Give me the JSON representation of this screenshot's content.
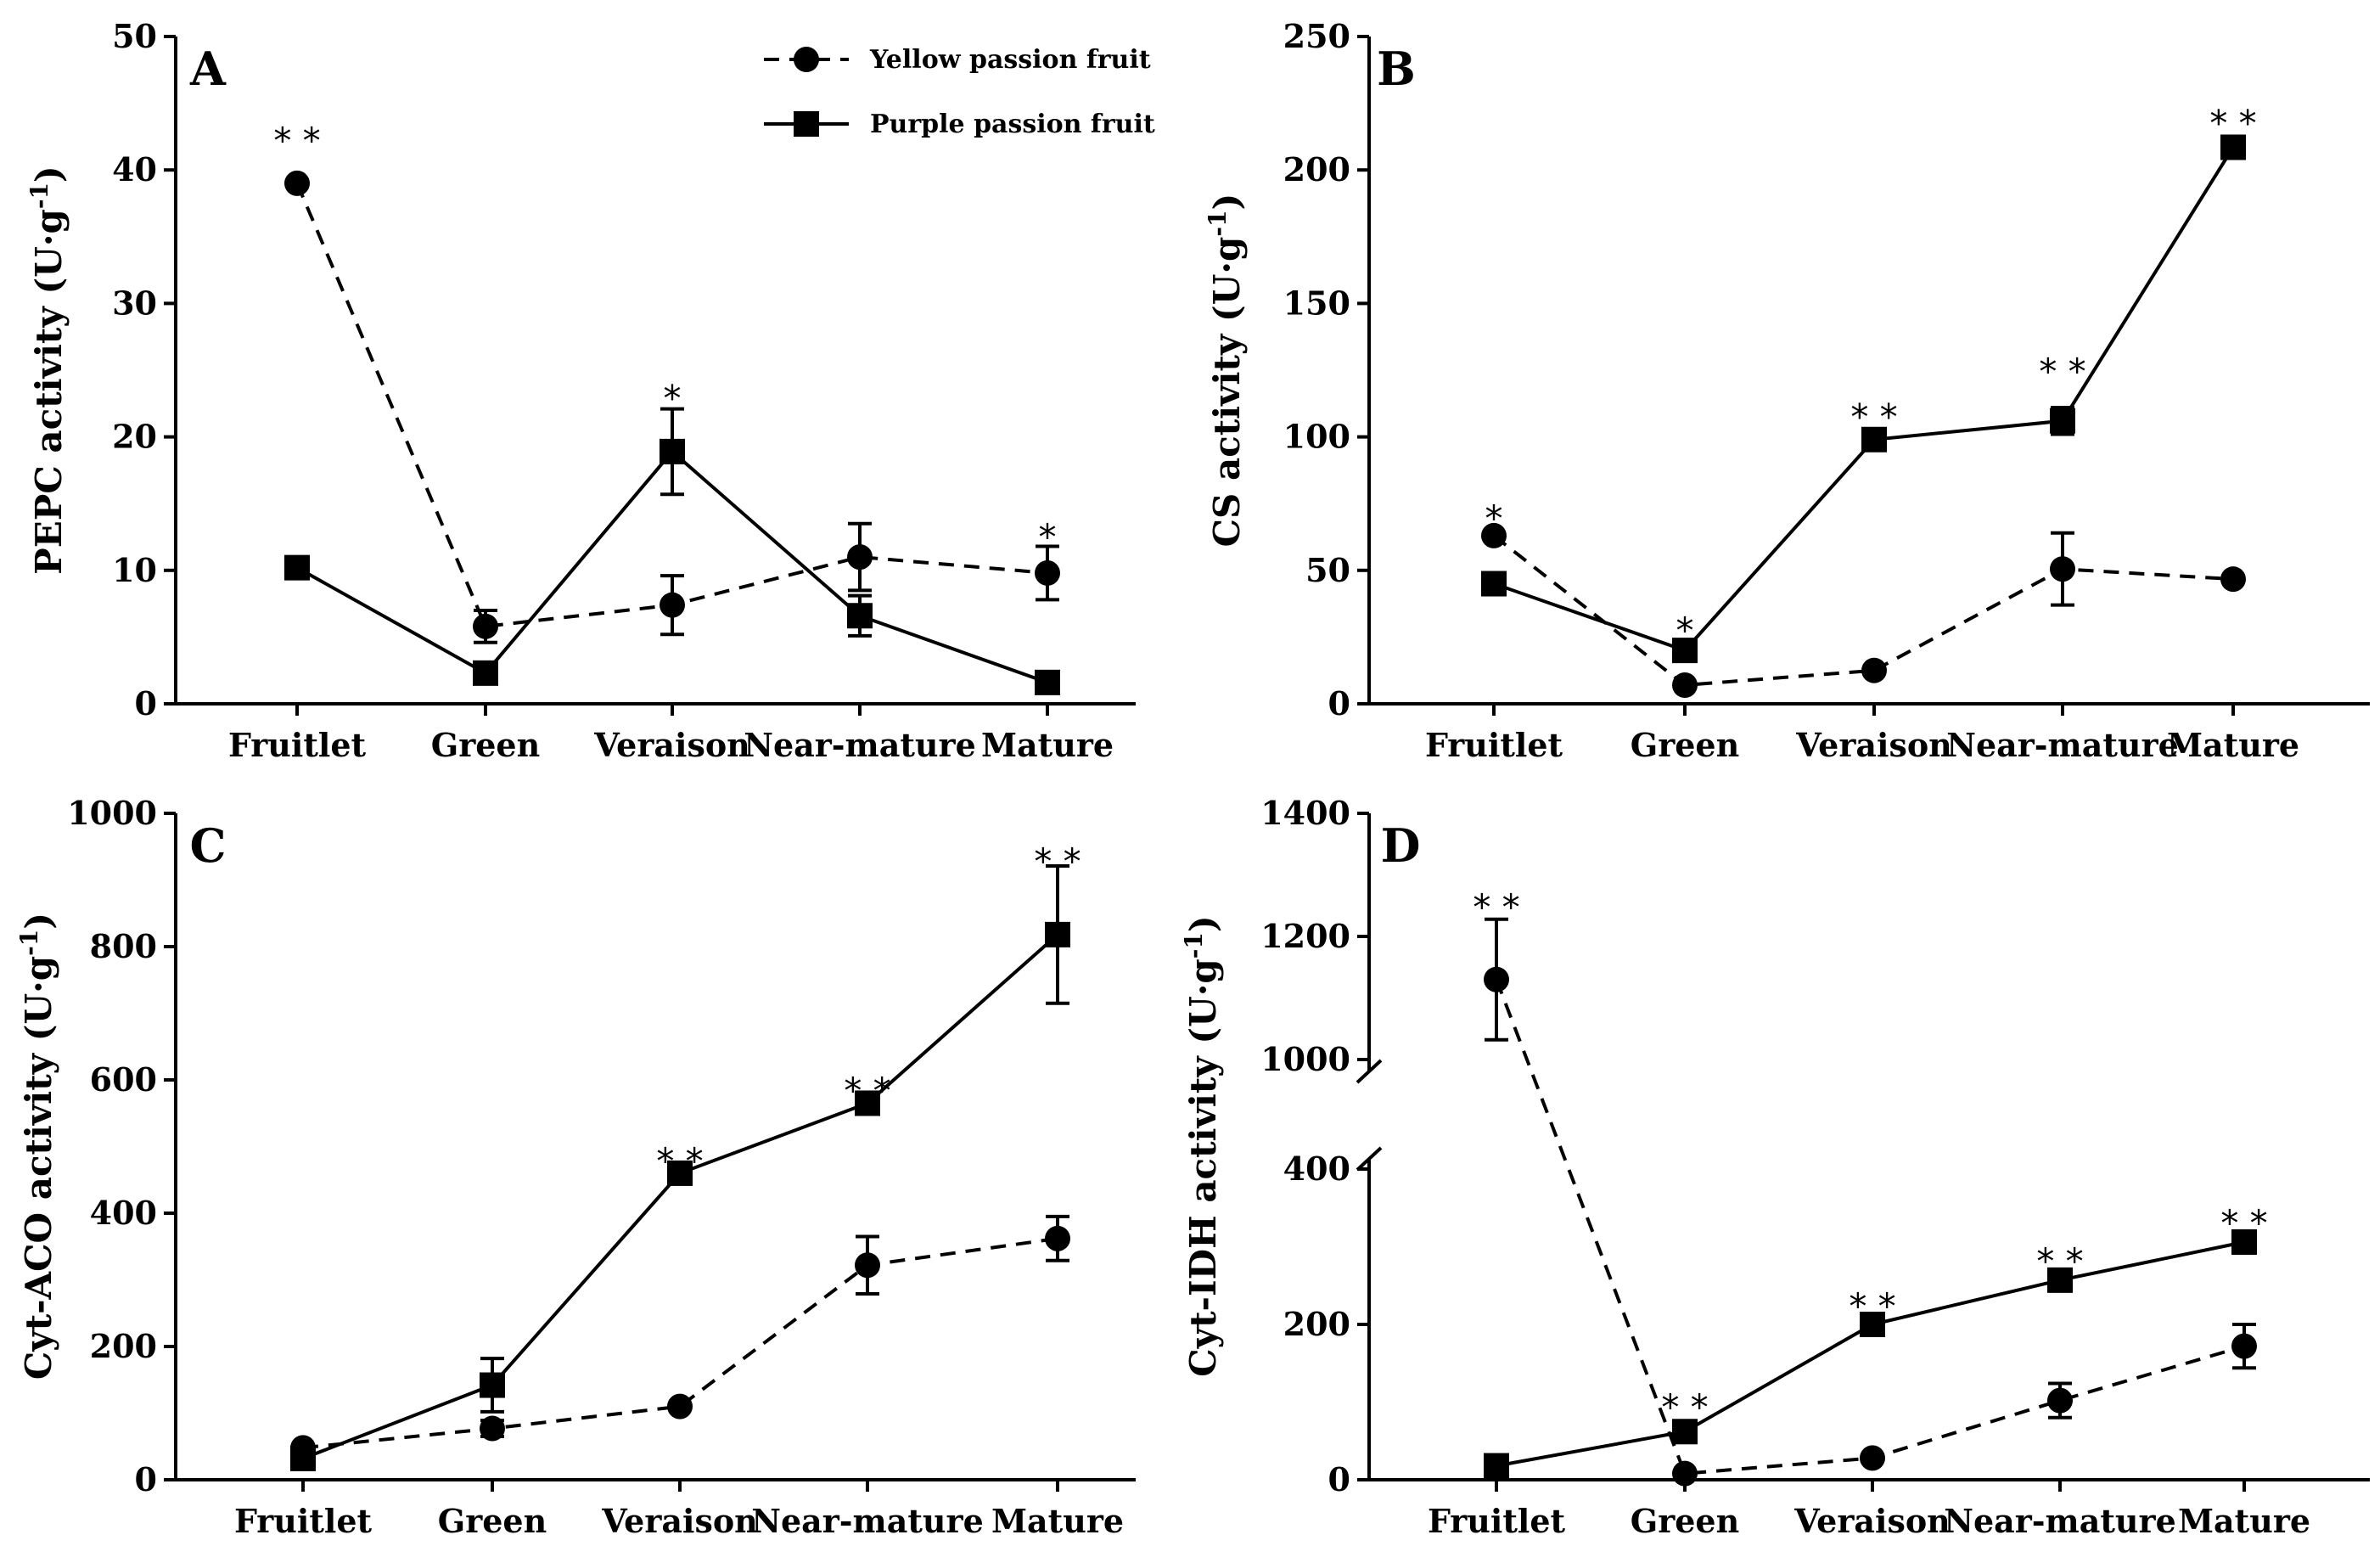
{
  "legend": [
    {
      "name": "Yellow passion fruit",
      "marker": "circle",
      "dash": true
    },
    {
      "name": "Purple passion fruit",
      "marker": "square",
      "dash": false
    }
  ],
  "chart_data": [
    {
      "id": "A",
      "type": "line",
      "panel_label": "A",
      "ylabel_main": "PEPC activity (U·g",
      "ylabel_sup": "-1",
      "ylabel_close": ")",
      "categories": [
        "Fruitlet",
        "Green",
        "Veraison",
        "Near-mature",
        "Mature"
      ],
      "ylim": [
        0,
        50
      ],
      "yticks": [
        0,
        10,
        20,
        30,
        40,
        50
      ],
      "series": [
        {
          "name": "Yellow passion fruit",
          "values": [
            39,
            5.8,
            7.4,
            11.0,
            9.8
          ],
          "errors": [
            0,
            1.2,
            2.2,
            2.5,
            2.0
          ]
        },
        {
          "name": "Purple passion fruit",
          "values": [
            10.2,
            2.3,
            18.9,
            6.6,
            1.6
          ],
          "errors": [
            0,
            0.5,
            3.2,
            1.5,
            0
          ]
        }
      ],
      "significance": [
        {
          "index": 0,
          "label": "* *",
          "y": 42.3
        },
        {
          "index": 2,
          "label": "*",
          "y": 23.0
        },
        {
          "index": 4,
          "label": "*",
          "y": 12.6
        }
      ]
    },
    {
      "id": "B",
      "type": "line",
      "panel_label": "B",
      "ylabel_main": "CS activity (U·g",
      "ylabel_sup": "-1",
      "ylabel_close": ")",
      "categories": [
        "Fruitlet",
        "Green",
        "Veraison",
        "Near-mature",
        "Mature"
      ],
      "ylim": [
        0,
        250
      ],
      "yticks": [
        0,
        50,
        100,
        150,
        200,
        250
      ],
      "series": [
        {
          "name": "Yellow passion fruit",
          "values": [
            63,
            7,
            12.5,
            50.5,
            46.7
          ],
          "errors": [
            0,
            0,
            0,
            13.5,
            0
          ]
        },
        {
          "name": "Purple passion fruit",
          "values": [
            45,
            20,
            99,
            106,
            208.5
          ],
          "errors": [
            4,
            0,
            0,
            5,
            0
          ]
        }
      ],
      "significance": [
        {
          "index": 0,
          "label": "*",
          "y": 70
        },
        {
          "index": 1,
          "label": "*",
          "y": 28
        },
        {
          "index": 2,
          "label": "* *",
          "y": 108
        },
        {
          "index": 3,
          "label": "* *",
          "y": 125
        },
        {
          "index": 4,
          "label": "* *",
          "y": 218
        }
      ]
    },
    {
      "id": "C",
      "type": "line",
      "panel_label": "C",
      "ylabel_main": "Cyt-ACO activity (U·g",
      "ylabel_sup": "-1",
      "ylabel_close": ")",
      "categories": [
        "Fruitlet",
        "Green",
        "Veraison",
        "Near-mature",
        "Mature"
      ],
      "ylim": [
        0,
        1000
      ],
      "yticks": [
        0,
        200,
        400,
        600,
        800,
        1000
      ],
      "series": [
        {
          "name": "Yellow passion fruit",
          "values": [
            48,
            77,
            110,
            322,
            362
          ],
          "errors": [
            0,
            12,
            0,
            43,
            33
          ]
        },
        {
          "name": "Purple passion fruit",
          "values": [
            32,
            142,
            460,
            565,
            818
          ],
          "errors": [
            0,
            40,
            0,
            0,
            103
          ]
        }
      ],
      "significance": [
        {
          "index": 2,
          "label": "* *",
          "y": 480
        },
        {
          "index": 3,
          "label": "* *",
          "y": 586
        },
        {
          "index": 4,
          "label": "* *",
          "y": 930
        }
      ]
    },
    {
      "id": "D",
      "type": "line",
      "panel_label": "D",
      "ylabel_main": "Cyt-IDH activity (U·g",
      "ylabel_sup": "-1",
      "ylabel_close": ")",
      "categories": [
        "Fruitlet",
        "Green",
        "Veraison",
        "Near-mature",
        "Mature"
      ],
      "axis_break": true,
      "yticks": [
        0,
        200,
        400,
        1000,
        1200,
        1400
      ],
      "series": [
        {
          "name": "Yellow passion fruit",
          "values": [
            1130,
            8,
            28,
            102,
            172
          ],
          "errors": [
            98,
            0,
            0,
            22,
            28
          ]
        },
        {
          "name": "Purple passion fruit",
          "values": [
            18,
            62,
            200,
            257,
            306
          ],
          "errors": [
            0,
            0,
            0,
            0,
            0
          ]
        }
      ],
      "significance": [
        {
          "index": 0,
          "label": "* *",
          "y": 1250
        },
        {
          "index": 1,
          "label": "* *",
          "y": 95
        },
        {
          "index": 2,
          "label": "* *",
          "y": 225
        },
        {
          "index": 3,
          "label": "* *",
          "y": 283
        },
        {
          "index": 4,
          "label": "* *",
          "y": 332
        }
      ]
    }
  ]
}
